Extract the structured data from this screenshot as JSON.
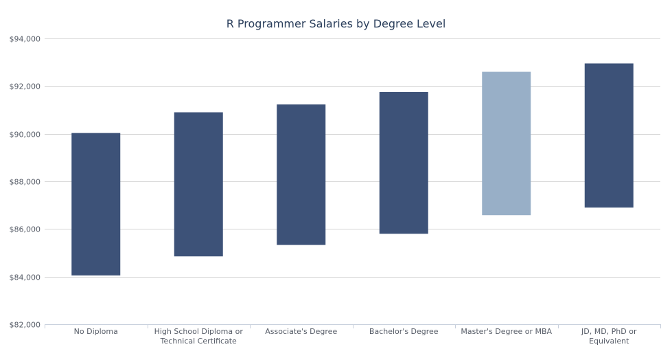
{
  "chart_data": {
    "type": "bar",
    "subtype": "floating-range",
    "title": "R Programmer Salaries by Degree Level",
    "xlabel": "",
    "ylabel": "",
    "ylim": [
      82000,
      94000
    ],
    "yticks": [
      82000,
      84000,
      86000,
      88000,
      90000,
      92000,
      94000
    ],
    "ytick_labels": [
      "$82,000",
      "$84,000",
      "$86,000",
      "$88,000",
      "$90,000",
      "$92,000",
      "$94,000"
    ],
    "grid": true,
    "categories": [
      [
        "No Diploma"
      ],
      [
        "High School Diploma or",
        "Technical Certificate"
      ],
      [
        "Associate's Degree"
      ],
      [
        "Bachelor's Degree"
      ],
      [
        "Master's Degree or MBA"
      ],
      [
        "JD, MD, PhD or",
        "Equivalent"
      ]
    ],
    "ranges": [
      {
        "low": 84050,
        "high": 90030
      },
      {
        "low": 84850,
        "high": 90900
      },
      {
        "low": 85330,
        "high": 91230
      },
      {
        "low": 85800,
        "high": 91750
      },
      {
        "low": 86580,
        "high": 92600
      },
      {
        "low": 86900,
        "high": 92950
      }
    ],
    "colors": {
      "bar": "#3d5278",
      "highlight": "#98afc7",
      "grid": "#d3d3d3",
      "axis": "#c7cfdc"
    },
    "highlight_index": 4
  }
}
